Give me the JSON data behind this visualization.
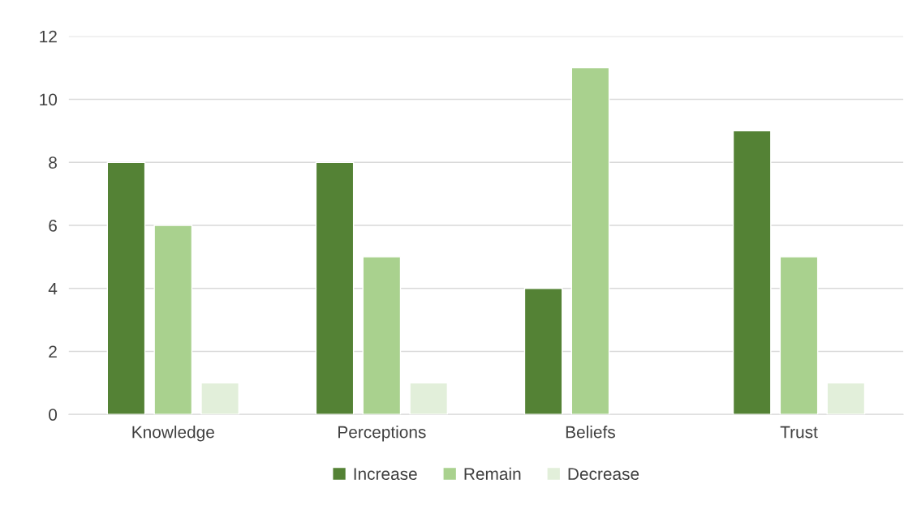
{
  "chart_data": {
    "type": "bar",
    "categories": [
      "Knowledge",
      "Perceptions",
      "Beliefs",
      "Trust"
    ],
    "series": [
      {
        "name": "Increase",
        "color": "#548235",
        "values": [
          8,
          8,
          4,
          9
        ]
      },
      {
        "name": "Remain",
        "color": "#a9d18e",
        "values": [
          6,
          5,
          11,
          5
        ]
      },
      {
        "name": "Decrease",
        "color": "#e2efda",
        "values": [
          1,
          1,
          null,
          1
        ]
      }
    ],
    "ylim": [
      0,
      12
    ],
    "yticks": [
      0,
      2,
      4,
      6,
      8,
      10,
      12
    ],
    "grid": "y",
    "legend": "bottom"
  }
}
